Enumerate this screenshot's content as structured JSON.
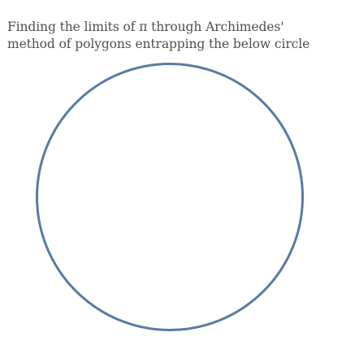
{
  "heading": {
    "line1": "Finding the limits of π through Archimedes'",
    "line2": "method of polygons entrapping the below circle"
  },
  "colors": {
    "circle_stroke": "#5b7aa0",
    "text": "#505050",
    "background": "#ffffff"
  }
}
